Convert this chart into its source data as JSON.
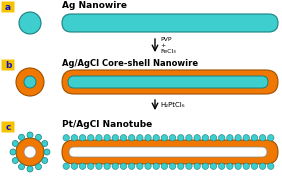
{
  "bg_color": "#ffffff",
  "cyan": "#3ECECE",
  "orange": "#F07800",
  "dark_cyan": "#1A8080",
  "dark_orange": "#A05000",
  "white": "#ffffff",
  "label_bg": "#F5C400",
  "label_text": "#1010CC",
  "title_color": "#000000",
  "title_a": "Ag Nanowire",
  "title_b": "Ag/AgCl Core-shell Nanowire",
  "title_c": "Pt/AgCl Nanotube",
  "arrow_ab": "PVP\n+\nFeCl₃",
  "arrow_bc": "H₂PtCl₆",
  "fig_w": 2.82,
  "fig_h": 1.89,
  "dpi": 100
}
